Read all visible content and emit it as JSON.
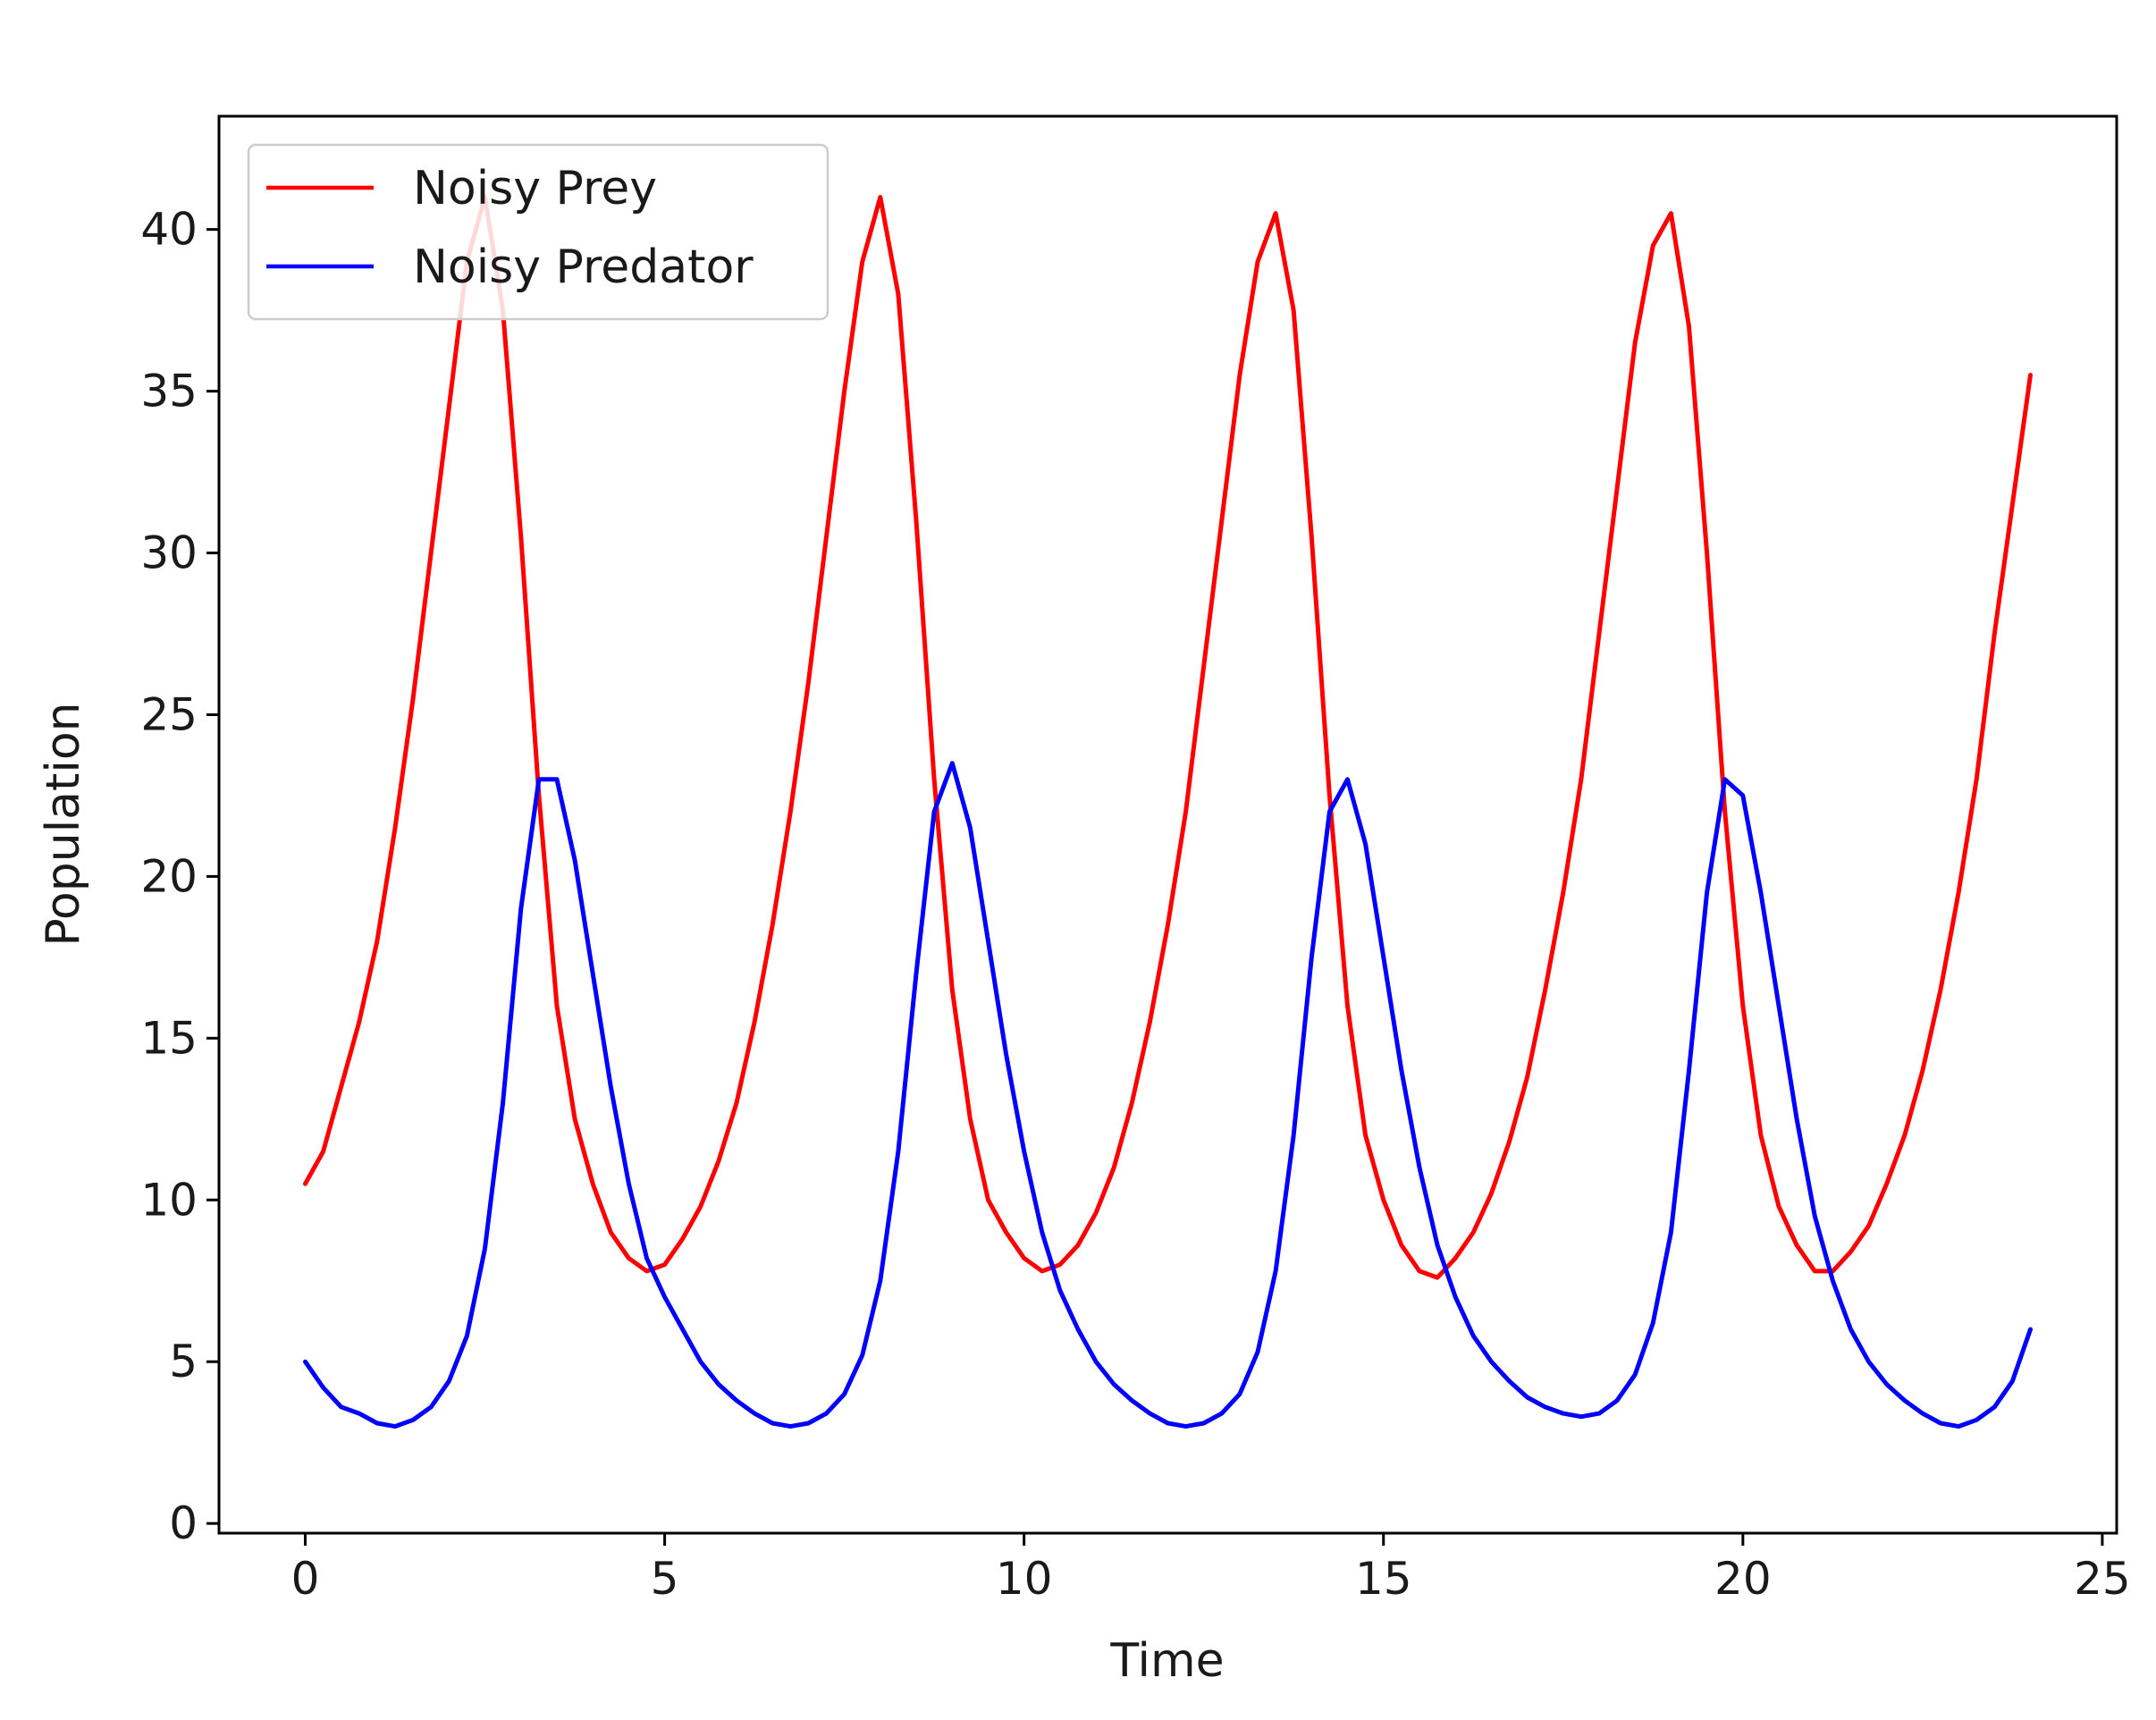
{
  "chart_data": {
    "type": "line",
    "title": "",
    "xlabel": "Time",
    "ylabel": "Population",
    "xlim": [
      -1.2,
      25.2
    ],
    "ylim": [
      -0.3,
      43.5
    ],
    "xticks": [
      0,
      5,
      10,
      15,
      20,
      25
    ],
    "yticks": [
      0,
      5,
      10,
      15,
      20,
      25,
      30,
      35,
      40
    ],
    "grid": false,
    "legend": "top-left",
    "series": [
      {
        "name": "Noisy Prey",
        "color": "#ff0000",
        "x": [
          0,
          0.25,
          0.5,
          0.75,
          1.0,
          1.25,
          1.5,
          1.75,
          2.0,
          2.25,
          2.5,
          2.75,
          3.0,
          3.25,
          3.5,
          3.75,
          4.0,
          4.25,
          4.5,
          4.75,
          5.0,
          5.25,
          5.5,
          5.75,
          6.0,
          6.25,
          6.5,
          6.75,
          7.0,
          7.25,
          7.5,
          7.75,
          8.0,
          8.25,
          8.5,
          8.75,
          9.0,
          9.25,
          9.5,
          9.75,
          10.0,
          10.25,
          10.5,
          10.75,
          11.0,
          11.25,
          11.5,
          11.75,
          12.0,
          12.25,
          12.5,
          12.75,
          13.0,
          13.25,
          13.5,
          13.75,
          14.0,
          14.25,
          14.5,
          14.75,
          15.0,
          15.25,
          15.5,
          15.75,
          16.0,
          16.25,
          16.5,
          16.75,
          17.0,
          17.25,
          17.5,
          17.75,
          18.0,
          18.25,
          18.5,
          18.75,
          19.0,
          19.25,
          19.5,
          19.75,
          20.0,
          20.25,
          20.5,
          20.75,
          21.0,
          21.25,
          21.5,
          21.75,
          22.0,
          22.25,
          22.5,
          22.75,
          23.0,
          23.25,
          23.5,
          23.75,
          24.0
        ],
        "values": [
          10.5,
          11.5,
          13.5,
          15.5,
          18.0,
          21.5,
          25.5,
          30.0,
          34.5,
          39.0,
          41.0,
          37.5,
          30.5,
          22.5,
          16.0,
          12.5,
          10.5,
          9.0,
          8.2,
          7.8,
          8.0,
          8.8,
          9.8,
          11.2,
          13.0,
          15.5,
          18.5,
          22.0,
          26.0,
          30.5,
          35.0,
          39.0,
          41.0,
          38.0,
          31.0,
          23.0,
          16.5,
          12.5,
          10.0,
          9.0,
          8.2,
          7.8,
          8.0,
          8.6,
          9.6,
          11.0,
          13.0,
          15.5,
          18.5,
          22.0,
          26.5,
          31.0,
          35.5,
          39.0,
          40.5,
          37.5,
          30.5,
          22.5,
          16.0,
          12.0,
          10.0,
          8.6,
          7.8,
          7.6,
          8.2,
          9.0,
          10.2,
          11.8,
          13.8,
          16.5,
          19.5,
          23.0,
          27.5,
          32.0,
          36.5,
          39.5,
          40.5,
          37.0,
          30.0,
          22.0,
          16.0,
          12.0,
          9.8,
          8.6,
          7.8,
          7.8,
          8.4,
          9.2,
          10.5,
          12.0,
          14.0,
          16.5,
          19.5,
          23.0,
          27.5,
          31.5,
          35.5
        ]
      },
      {
        "name": "Noisy Predator",
        "color": "#0000ff",
        "x": [
          0,
          0.25,
          0.5,
          0.75,
          1.0,
          1.25,
          1.5,
          1.75,
          2.0,
          2.25,
          2.5,
          2.75,
          3.0,
          3.25,
          3.5,
          3.75,
          4.0,
          4.25,
          4.5,
          4.75,
          5.0,
          5.25,
          5.5,
          5.75,
          6.0,
          6.25,
          6.5,
          6.75,
          7.0,
          7.25,
          7.5,
          7.75,
          8.0,
          8.25,
          8.5,
          8.75,
          9.0,
          9.25,
          9.5,
          9.75,
          10.0,
          10.25,
          10.5,
          10.75,
          11.0,
          11.25,
          11.5,
          11.75,
          12.0,
          12.25,
          12.5,
          12.75,
          13.0,
          13.25,
          13.5,
          13.75,
          14.0,
          14.25,
          14.5,
          14.75,
          15.0,
          15.25,
          15.5,
          15.75,
          16.0,
          16.25,
          16.5,
          16.75,
          17.0,
          17.25,
          17.5,
          17.75,
          18.0,
          18.25,
          18.5,
          18.75,
          19.0,
          19.25,
          19.5,
          19.75,
          20.0,
          20.25,
          20.5,
          20.75,
          21.0,
          21.25,
          21.5,
          21.75,
          22.0,
          22.25,
          22.5,
          22.75,
          23.0,
          23.25,
          23.5,
          23.75,
          24.0
        ],
        "values": [
          5.0,
          4.2,
          3.6,
          3.4,
          3.1,
          3.0,
          3.2,
          3.6,
          4.4,
          5.8,
          8.5,
          13.0,
          19.0,
          23.0,
          23.0,
          20.5,
          17.0,
          13.5,
          10.5,
          8.2,
          7.0,
          6.0,
          5.0,
          4.3,
          3.8,
          3.4,
          3.1,
          3.0,
          3.1,
          3.4,
          4.0,
          5.2,
          7.5,
          11.5,
          17.0,
          22.0,
          23.5,
          21.5,
          18.0,
          14.5,
          11.5,
          9.0,
          7.2,
          6.0,
          5.0,
          4.3,
          3.8,
          3.4,
          3.1,
          3.0,
          3.1,
          3.4,
          4.0,
          5.3,
          7.8,
          12.0,
          17.5,
          22.0,
          23.0,
          21.0,
          17.5,
          14.0,
          11.0,
          8.6,
          7.0,
          5.8,
          5.0,
          4.4,
          3.9,
          3.6,
          3.4,
          3.3,
          3.4,
          3.8,
          4.6,
          6.2,
          9.0,
          14.0,
          19.5,
          23.0,
          22.5,
          19.5,
          16.0,
          12.5,
          9.5,
          7.5,
          6.0,
          5.0,
          4.3,
          3.8,
          3.4,
          3.1,
          3.0,
          3.2,
          3.6,
          4.4,
          6.0
        ]
      }
    ]
  }
}
